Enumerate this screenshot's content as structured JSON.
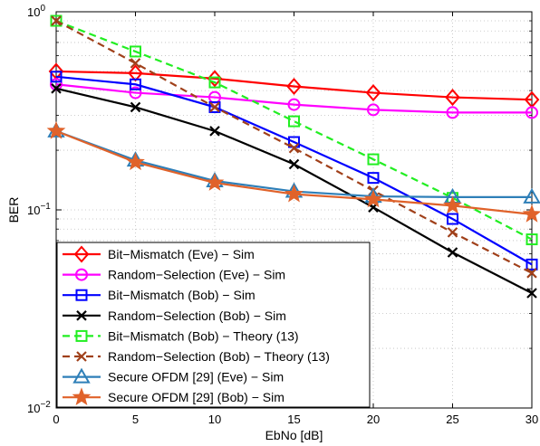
{
  "chart_data": {
    "type": "line",
    "xlabel": "EbNo [dB]",
    "ylabel": "BER",
    "xlim": [
      0,
      30
    ],
    "ylim": [
      0.01,
      1
    ],
    "yscale": "log",
    "grid": true,
    "legend_position": "bottom-left",
    "x_ticks": [
      "0",
      "5",
      "10",
      "15",
      "20",
      "25",
      "30"
    ],
    "y_ticks": [
      {
        "value": 0.01,
        "base": "10",
        "exp": "−2"
      },
      {
        "value": 0.1,
        "base": "10",
        "exp": "−1"
      },
      {
        "value": 1,
        "base": "10",
        "exp": "0"
      }
    ],
    "x": [
      0,
      5,
      10,
      15,
      20,
      25,
      30
    ],
    "series": [
      {
        "name": "Bit−Mismatch (Eve) − Sim",
        "color": "#ff0000",
        "marker": "diamond",
        "dash": "solid",
        "values": [
          0.5,
          0.49,
          0.46,
          0.42,
          0.39,
          0.37,
          0.36
        ]
      },
      {
        "name": "Random−Selection (Eve) − Sim",
        "color": "#ff00ff",
        "marker": "circle",
        "dash": "solid",
        "values": [
          0.43,
          0.39,
          0.37,
          0.34,
          0.32,
          0.31,
          0.31
        ]
      },
      {
        "name": "Bit−Mismatch (Bob) − Sim",
        "color": "#0000ff",
        "marker": "square",
        "dash": "solid",
        "values": [
          0.47,
          0.43,
          0.33,
          0.22,
          0.145,
          0.09,
          0.053
        ]
      },
      {
        "name": "Random−Selection (Bob) − Sim",
        "color": "#000000",
        "marker": "x",
        "dash": "solid",
        "values": [
          0.41,
          0.33,
          0.25,
          0.17,
          0.103,
          0.061,
          0.038
        ]
      },
      {
        "name": "Bit−Mismatch (Bob) − Theory (13)",
        "color": "#22ee22",
        "marker": "square",
        "dash": "dashed",
        "values": [
          0.9,
          0.63,
          0.44,
          0.28,
          0.18,
          0.115,
          0.071
        ]
      },
      {
        "name": "Random−Selection (Bob) − Theory (13)",
        "color": "#a0401a",
        "marker": "x",
        "dash": "dashed",
        "values": [
          0.9,
          0.55,
          0.33,
          0.205,
          0.125,
          0.077,
          0.048
        ]
      },
      {
        "name": "Secure OFDM [29] (Eve) − Sim",
        "color": "#2e7fb8",
        "marker": "triangle",
        "dash": "solid",
        "values": [
          0.25,
          0.178,
          0.14,
          0.124,
          0.117,
          0.116,
          0.116
        ]
      },
      {
        "name": "Secure OFDM [29] (Bob) − Sim",
        "color": "#e0622a",
        "marker": "star",
        "dash": "solid",
        "values": [
          0.25,
          0.174,
          0.137,
          0.12,
          0.113,
          0.105,
          0.095
        ]
      }
    ]
  }
}
